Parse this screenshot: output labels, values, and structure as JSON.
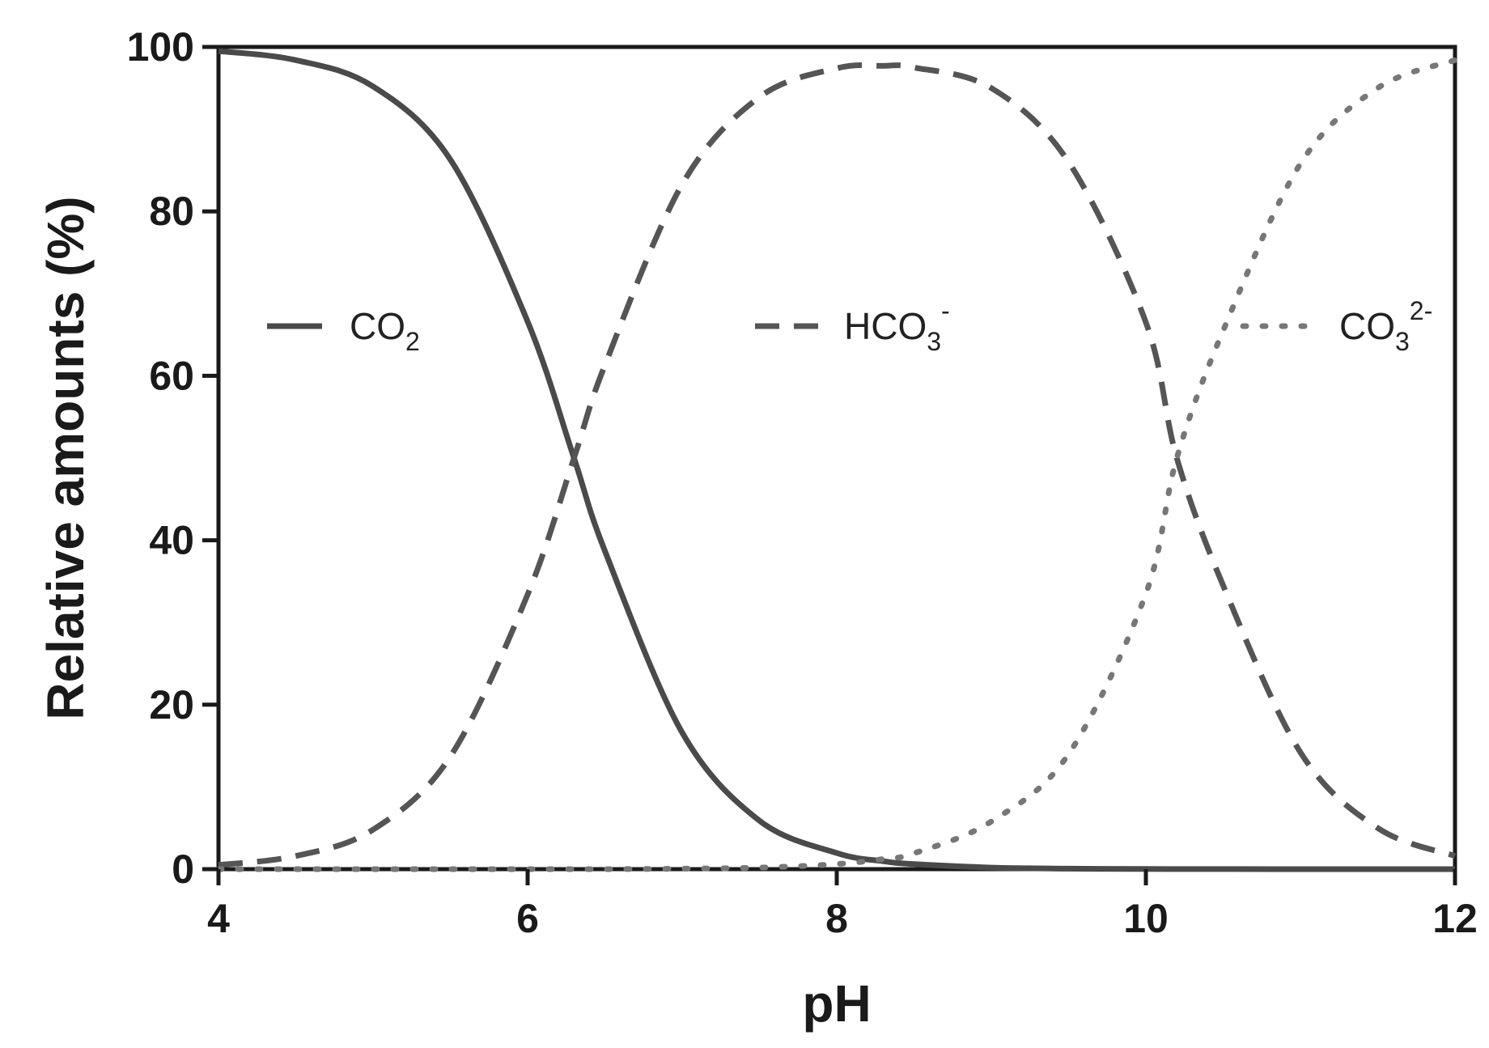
{
  "chart_data": {
    "type": "line",
    "title": "",
    "xlabel": "pH",
    "ylabel": "Relative amounts (%)",
    "xlim": [
      4,
      12
    ],
    "ylim": [
      0,
      100
    ],
    "x_ticks": [
      4,
      6,
      8,
      10,
      12
    ],
    "y_ticks": [
      0,
      20,
      40,
      60,
      80,
      100
    ],
    "grid": false,
    "legend_position": "inline-middle",
    "x": [
      4.0,
      4.5,
      5.0,
      5.5,
      6.0,
      6.3,
      6.5,
      7.0,
      7.5,
      8.0,
      8.3,
      8.5,
      9.0,
      9.5,
      10.0,
      10.2,
      10.5,
      11.0,
      11.5,
      12.0
    ],
    "series": [
      {
        "name": "CO2",
        "name_main": "CO",
        "name_sub": "2",
        "name_sup": "",
        "style": "solid",
        "color": "#4a4a4a",
        "values": [
          99.5,
          98.4,
          95.2,
          86.3,
          66.6,
          50.0,
          38.7,
          16.6,
          5.9,
          1.96,
          0.97,
          0.61,
          0.19,
          0.06,
          0.02,
          0.01,
          0.01,
          0.0,
          0.0,
          0.0
        ]
      },
      {
        "name": "HCO3-",
        "name_main": "HCO",
        "name_sub": "3",
        "name_sup": "-",
        "style": "dashed",
        "color": "#555555",
        "values": [
          0.5,
          1.6,
          4.8,
          13.7,
          33.4,
          50.0,
          61.3,
          83.3,
          93.9,
          97.4,
          97.7,
          97.5,
          95.0,
          86.0,
          66.5,
          50.0,
          34.5,
          14.2,
          5.0,
          1.6
        ]
      },
      {
        "name": "CO3 2-",
        "name_main": "CO",
        "name_sub": "3",
        "name_sup": "2-",
        "style": "dotted",
        "color": "#777777",
        "values": [
          0.0,
          0.0,
          0.0,
          0.0,
          0.0,
          0.0,
          0.0,
          0.06,
          0.19,
          0.62,
          1.23,
          1.93,
          5.8,
          14.0,
          33.5,
          50.0,
          65.5,
          85.8,
          95.0,
          98.4
        ]
      }
    ]
  }
}
